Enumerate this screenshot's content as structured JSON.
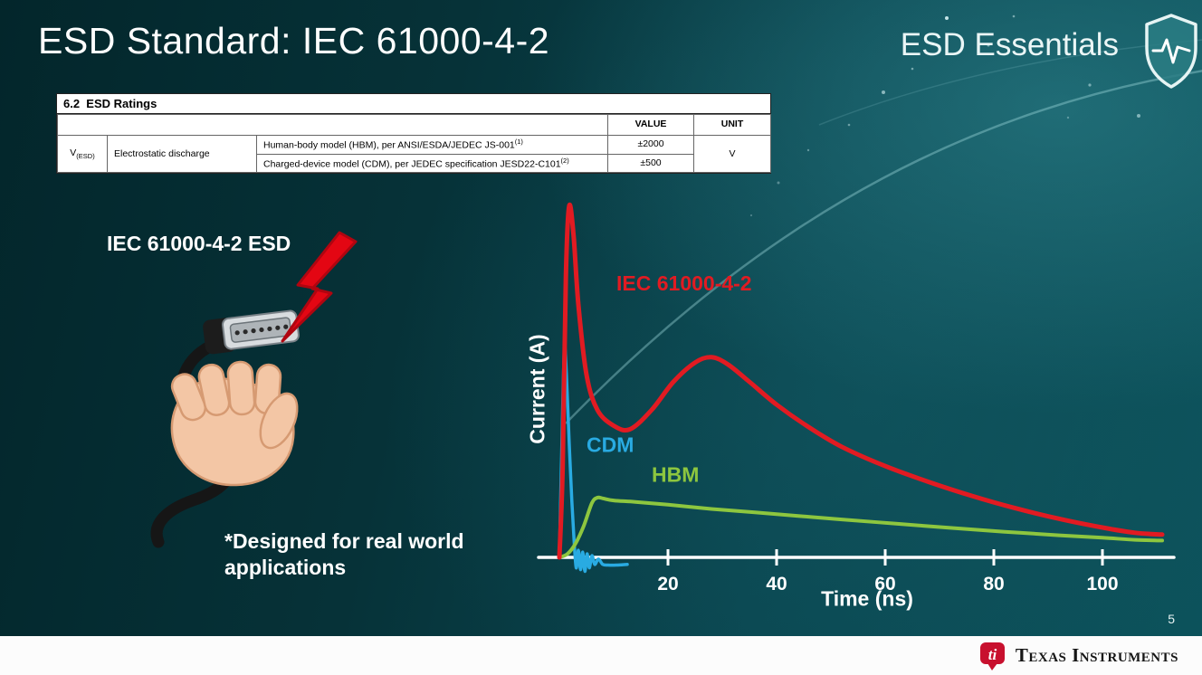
{
  "slide": {
    "title": "ESD Standard: IEC 61000-4-2",
    "brand_series": "ESD Essentials",
    "page_number": "5"
  },
  "ratings_table": {
    "section_heading": "6.2  ESD Ratings",
    "value_header": "VALUE",
    "unit_header": "UNIT",
    "param_symbol": "V",
    "param_symbol_sub": "(ESD)",
    "param_name": "Electrostatic discharge",
    "rows": [
      {
        "desc": "Human-body model (HBM), per ANSI/ESDA/JEDEC JS-001",
        "sup": "(1)",
        "value": "±2000"
      },
      {
        "desc": "Charged-device model (CDM), per JEDEC specification JESD22-C101",
        "sup": "(2)",
        "value": "±500"
      }
    ],
    "unit": "V"
  },
  "illustration": {
    "caption": "IEC 61000-4-2 ESD",
    "note_line1": "*Designed for real world",
    "note_line2": "applications"
  },
  "footer": {
    "brand": "Texas Instruments",
    "logo_text": "ti"
  },
  "chart_data": {
    "type": "line",
    "title": "",
    "xlabel": "Time (ns)",
    "ylabel": "Current (A)",
    "xlim": [
      0,
      112
    ],
    "ylim": [
      -0.05,
      1.05
    ],
    "x_ticks": [
      20,
      40,
      60,
      80,
      100
    ],
    "grid": false,
    "legend_position": "inline-labels",
    "y_axis_note": "relative amplitude, no y ticks shown",
    "series": [
      {
        "name": "CDM",
        "color": "#29abe2",
        "width": 3.5,
        "label_pos": [
          5.0,
          0.3
        ],
        "points": [
          [
            0,
            0
          ],
          [
            0.4,
            0.28
          ],
          [
            0.9,
            0.59
          ],
          [
            1.3,
            0.52
          ],
          [
            1.8,
            0.33
          ],
          [
            2.3,
            0.16
          ],
          [
            2.7,
            0.05
          ],
          [
            3.1,
            -0.03
          ],
          [
            3.5,
            0.02
          ],
          [
            3.9,
            -0.035
          ],
          [
            4.3,
            0.015
          ],
          [
            4.7,
            -0.04
          ],
          [
            5.1,
            0.01
          ],
          [
            5.5,
            -0.03
          ],
          [
            6,
            0.005
          ],
          [
            6.5,
            -0.02
          ],
          [
            7.2,
            -0.005
          ],
          [
            8,
            -0.02
          ],
          [
            9,
            -0.022
          ],
          [
            10.5,
            -0.022
          ],
          [
            12.5,
            -0.02
          ]
        ]
      },
      {
        "name": "HBM",
        "color": "#8dc63f",
        "width": 4,
        "label_pos": [
          17,
          0.215
        ],
        "points": [
          [
            0,
            0
          ],
          [
            1.5,
            0.01
          ],
          [
            3,
            0.04
          ],
          [
            4.5,
            0.09
          ],
          [
            6,
            0.155
          ],
          [
            7,
            0.17
          ],
          [
            8,
            0.168
          ],
          [
            10,
            0.162
          ],
          [
            14,
            0.158
          ],
          [
            20,
            0.15
          ],
          [
            28,
            0.138
          ],
          [
            36,
            0.128
          ],
          [
            44,
            0.118
          ],
          [
            52,
            0.108
          ],
          [
            62,
            0.096
          ],
          [
            72,
            0.084
          ],
          [
            82,
            0.073
          ],
          [
            92,
            0.063
          ],
          [
            100,
            0.056
          ],
          [
            106,
            0.05
          ],
          [
            111,
            0.048
          ]
        ]
      },
      {
        "name": "IEC 61000-4-2",
        "color": "#e11b22",
        "width": 5,
        "label_pos": [
          10.5,
          0.76
        ],
        "points": [
          [
            0,
            0
          ],
          [
            0.6,
            0.25
          ],
          [
            1.2,
            0.8
          ],
          [
            1.8,
            1.0
          ],
          [
            2.6,
            0.92
          ],
          [
            3.5,
            0.72
          ],
          [
            5,
            0.52
          ],
          [
            7,
            0.42
          ],
          [
            10,
            0.375
          ],
          [
            13,
            0.365
          ],
          [
            17,
            0.42
          ],
          [
            21,
            0.5
          ],
          [
            25,
            0.555
          ],
          [
            28,
            0.57
          ],
          [
            31,
            0.55
          ],
          [
            35,
            0.5
          ],
          [
            40,
            0.435
          ],
          [
            46,
            0.37
          ],
          [
            52,
            0.315
          ],
          [
            60,
            0.26
          ],
          [
            68,
            0.215
          ],
          [
            76,
            0.175
          ],
          [
            84,
            0.14
          ],
          [
            92,
            0.11
          ],
          [
            100,
            0.085
          ],
          [
            106,
            0.07
          ],
          [
            111,
            0.065
          ]
        ]
      }
    ]
  }
}
